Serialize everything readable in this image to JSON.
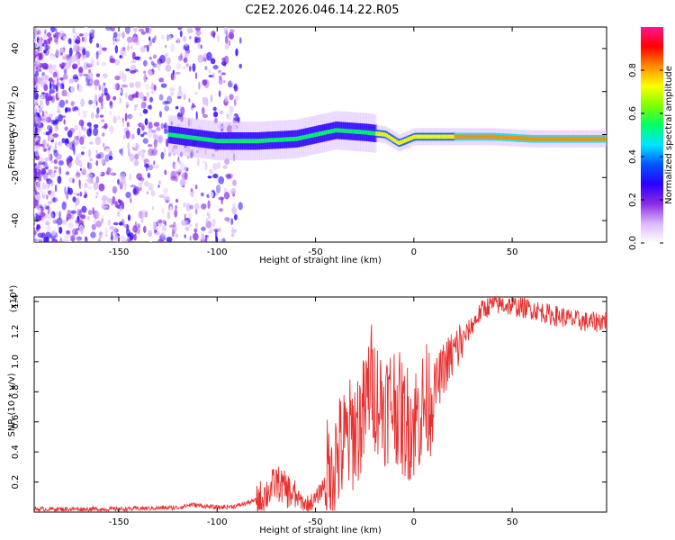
{
  "title": "C2E2.2026.046.14.22.R05",
  "chart_data": [
    {
      "type": "heatmap",
      "name": "spectrogram",
      "xlabel": "Height of straight line (km)",
      "ylabel": "Frequency (Hz)",
      "xlim": [
        -193,
        98
      ],
      "ylim": [
        -50,
        50
      ],
      "xticks": [
        -150,
        -100,
        -50,
        0,
        50
      ],
      "yticks": [
        -40,
        -20,
        0,
        20,
        40
      ],
      "colorbar": {
        "label": "Normalized spectral amplitude",
        "range": [
          0,
          1
        ],
        "ticks": [
          0.0,
          0.2,
          0.4,
          0.6,
          0.8
        ],
        "tick_labels": [
          "0.0",
          "0.2",
          "0.4",
          "0.6",
          "0.8"
        ],
        "colors": [
          "#ffffff",
          "#d9b8ff",
          "#8a2be2",
          "#2b00ff",
          "#0055ff",
          "#00e5ff",
          "#00ff66",
          "#7fff00",
          "#ffff00",
          "#ff8c00",
          "#ff0000",
          "#ff1493"
        ]
      },
      "ridge": {
        "x": [
          -125,
          -100,
          -80,
          -60,
          -40,
          -25,
          -15,
          -8,
          0,
          20,
          40,
          60,
          80,
          98
        ],
        "y": [
          0,
          -3,
          -3,
          -2,
          2,
          1,
          0,
          -4,
          -1,
          -1,
          -1,
          -2,
          -2,
          -2
        ]
      }
    },
    {
      "type": "line",
      "name": "snr",
      "xlabel": "Height of straight line (km)",
      "ylabel": "SNR (10 * v/v)",
      "y_multiplier": "(x10⁴)",
      "xlim": [
        -193,
        98
      ],
      "ylim": [
        0,
        1.43
      ],
      "xticks": [
        -150,
        -100,
        -50,
        0,
        50
      ],
      "yticks": [
        0.2,
        0.4,
        0.6,
        0.8,
        1.0,
        1.2,
        1.4
      ],
      "ytick_labels": [
        "0.2",
        "0.4",
        "0.6",
        "0.8",
        "1.0",
        "1.2",
        "1.4"
      ],
      "color": "#e83030",
      "series": [
        {
          "name": "SNR",
          "x": [
            -193,
            -150,
            -120,
            -113,
            -100,
            -90,
            -80,
            -75,
            -70,
            -65,
            -60,
            -55,
            -50,
            -45,
            -40,
            -35,
            -30,
            -25,
            -22,
            -20,
            -15,
            -10,
            -5,
            0,
            5,
            10,
            15,
            20,
            25,
            30,
            35,
            40,
            45,
            50,
            55,
            60,
            65,
            70,
            75,
            80,
            85,
            90,
            95,
            98
          ],
          "y": [
            0.02,
            0.02,
            0.03,
            0.05,
            0.03,
            0.04,
            0.08,
            0.12,
            0.2,
            0.15,
            0.1,
            0.05,
            0.08,
            0.2,
            0.35,
            0.45,
            0.55,
            0.65,
            0.9,
            0.8,
            0.7,
            0.75,
            0.6,
            0.6,
            0.7,
            0.8,
            0.95,
            1.05,
            1.15,
            1.25,
            1.35,
            1.38,
            1.38,
            1.37,
            1.36,
            1.35,
            1.33,
            1.31,
            1.3,
            1.28,
            1.27,
            1.26,
            1.27,
            1.28
          ]
        }
      ]
    }
  ]
}
